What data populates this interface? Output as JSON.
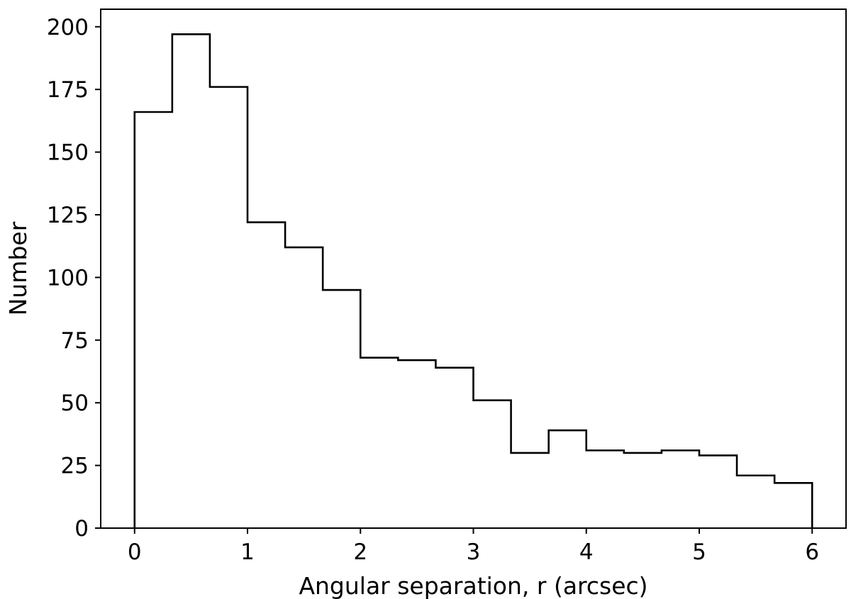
{
  "chart_data": {
    "type": "histogram",
    "xlabel": "Angular separation, r (arcsec)",
    "ylabel": "Number",
    "xlim": [
      -0.3,
      6.3
    ],
    "ylim": [
      0,
      207
    ],
    "x_ticks": [
      0,
      1,
      2,
      3,
      4,
      5,
      6
    ],
    "x_tick_labels": [
      "0",
      "1",
      "2",
      "3",
      "4",
      "5",
      "6"
    ],
    "y_ticks": [
      0,
      25,
      50,
      75,
      100,
      125,
      150,
      175,
      200
    ],
    "y_tick_labels": [
      "0",
      "25",
      "50",
      "75",
      "100",
      "125",
      "150",
      "175",
      "200"
    ],
    "bin_edges": [
      0,
      0.3333,
      0.6667,
      1.0,
      1.3333,
      1.6667,
      2.0,
      2.3333,
      2.6667,
      3.0,
      3.3333,
      3.6667,
      4.0,
      4.3333,
      4.6667,
      5.0,
      5.3333,
      5.6667,
      6.0
    ],
    "counts": [
      166,
      197,
      176,
      122,
      112,
      95,
      68,
      67,
      64,
      51,
      30,
      39,
      31,
      30,
      31,
      29,
      21,
      18
    ],
    "histtype": "step",
    "grid": false,
    "legend": null,
    "colors": {
      "line": "#000000",
      "axes": "#000000",
      "background": "#ffffff"
    }
  }
}
